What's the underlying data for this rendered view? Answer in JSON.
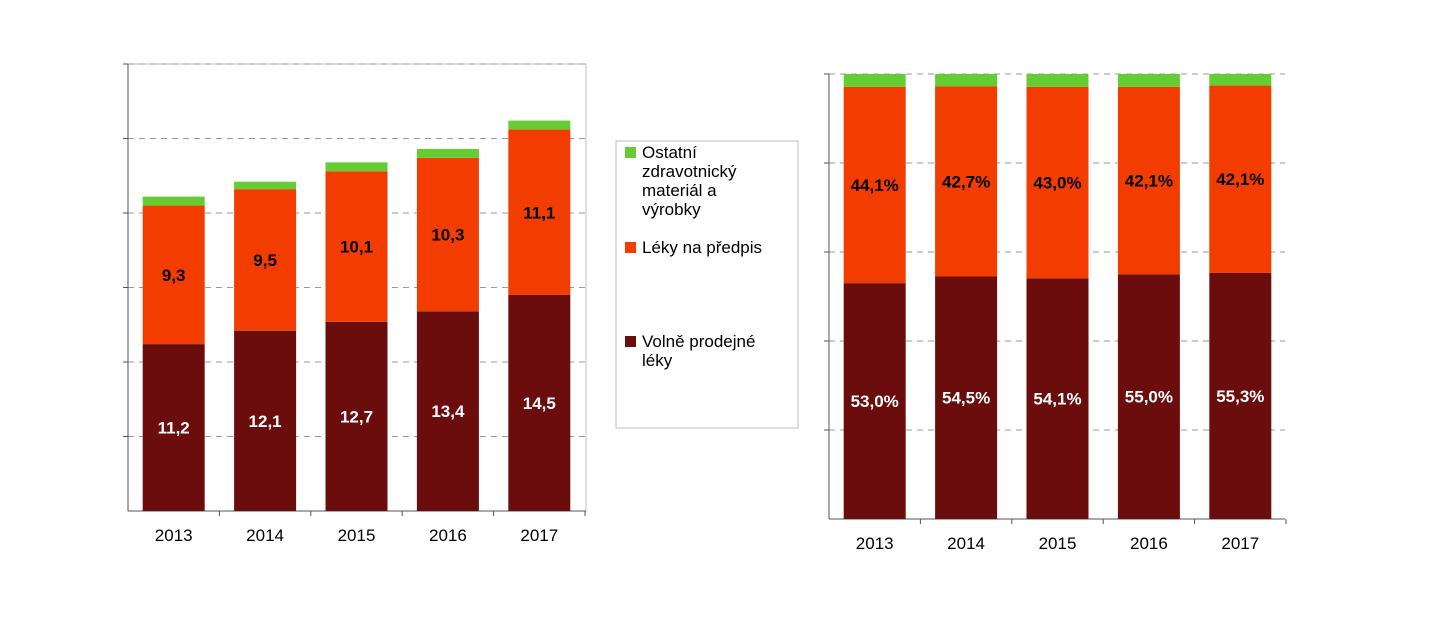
{
  "colors": {
    "volne": "#6b0d0d",
    "predpis": "#f23c00",
    "ostatni": "#66cc33",
    "grid": "#9a9a9a",
    "axis": "#555555",
    "frame": "#bfbfbf",
    "label_dark": "#000000",
    "label_light": "#ffffff"
  },
  "legend": {
    "items": [
      {
        "key": "ostatni",
        "lines": [
          "Ostatní",
          "zdravotnický",
          "materiál a",
          "výrobky"
        ]
      },
      {
        "key": "predpis",
        "lines": [
          "Léky na předpis"
        ]
      },
      {
        "key": "volne",
        "lines": [
          "Volně prodejné",
          "léky"
        ]
      }
    ]
  },
  "chart_data": [
    {
      "type": "bar",
      "stacked": true,
      "title": "",
      "xlabel": "",
      "ylabel": "",
      "categories": [
        "2013",
        "2014",
        "2015",
        "2016",
        "2017"
      ],
      "ylim": [
        0,
        30
      ],
      "grid": true,
      "ytick_labels_visible": false,
      "series": [
        {
          "key": "volne",
          "name": "Volně prodejné léky",
          "values": [
            11.2,
            12.1,
            12.7,
            13.4,
            14.5
          ],
          "labels": [
            "11,2",
            "12,1",
            "12,7",
            "13,4",
            "14,5"
          ]
        },
        {
          "key": "predpis",
          "name": "Léky na předpis",
          "values": [
            9.3,
            9.5,
            10.1,
            10.3,
            11.1
          ],
          "labels": [
            "9,3",
            "9,5",
            "10,1",
            "10,3",
            "11,1"
          ]
        },
        {
          "key": "ostatni",
          "name": "Ostatní zdravotnický materiál a výrobky",
          "values": [
            0.6,
            0.5,
            0.6,
            0.6,
            0.6
          ],
          "labels": []
        }
      ]
    },
    {
      "type": "bar",
      "stacked": true,
      "percent": true,
      "title": "",
      "xlabel": "",
      "ylabel": "",
      "categories": [
        "2013",
        "2014",
        "2015",
        "2016",
        "2017"
      ],
      "ylim": [
        0,
        100
      ],
      "grid": true,
      "ytick_labels_visible": false,
      "series": [
        {
          "key": "volne",
          "name": "Volně prodejné léky",
          "values": [
            53.0,
            54.5,
            54.1,
            55.0,
            55.3
          ],
          "labels": [
            "53,0%",
            "54,5%",
            "54,1%",
            "55,0%",
            "55,3%"
          ]
        },
        {
          "key": "predpis",
          "name": "Léky na předpis",
          "values": [
            44.1,
            42.7,
            43.0,
            42.1,
            42.1
          ],
          "labels": [
            "44,1%",
            "42,7%",
            "43,0%",
            "42,1%",
            "42,1%"
          ]
        },
        {
          "key": "ostatni",
          "name": "Ostatní zdravotnický materiál a výrobky",
          "values": [
            2.9,
            2.8,
            2.9,
            2.9,
            2.6
          ],
          "labels": []
        }
      ]
    }
  ]
}
